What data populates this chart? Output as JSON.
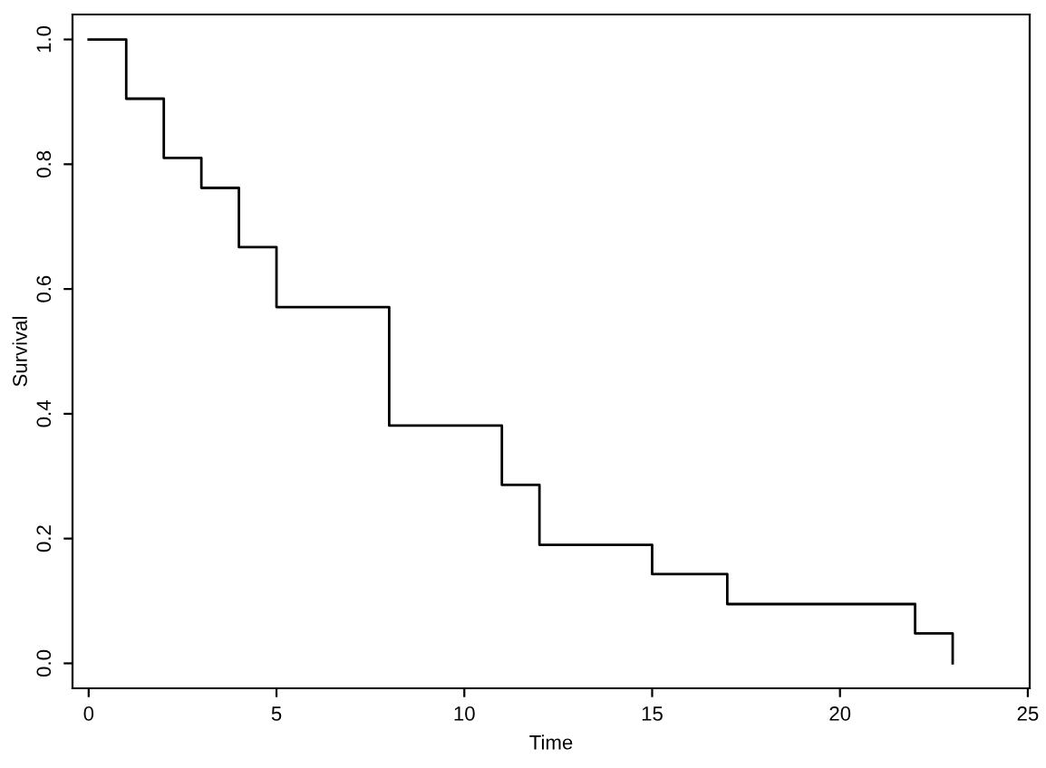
{
  "chart_data": {
    "type": "step",
    "xlabel": "Time",
    "ylabel": "Survival",
    "x": [
      0,
      1,
      2,
      3,
      4,
      5,
      8,
      11,
      12,
      15,
      17,
      22,
      23
    ],
    "series": [
      {
        "color": "#000000",
        "values": [
          1.0,
          0.905,
          0.81,
          0.762,
          0.667,
          0.571,
          0.381,
          0.286,
          0.19,
          0.143,
          0.095,
          0.048,
          0.0
        ]
      }
    ],
    "xlim": [
      -0.43,
      25.05
    ],
    "ylim": [
      -0.04,
      1.04
    ],
    "xticks": [
      0,
      5,
      10,
      15,
      20,
      25
    ],
    "yticks": [
      {
        "value": 0,
        "label": "0.0"
      },
      {
        "value": 0.2,
        "label": "0.2"
      },
      {
        "value": 0.4,
        "label": "0.4"
      },
      {
        "value": 0.6,
        "label": "0.6"
      },
      {
        "value": 0.8,
        "label": "0.8"
      },
      {
        "value": 1.0,
        "label": "1.0"
      }
    ],
    "grid": false,
    "line_style": "solid"
  }
}
